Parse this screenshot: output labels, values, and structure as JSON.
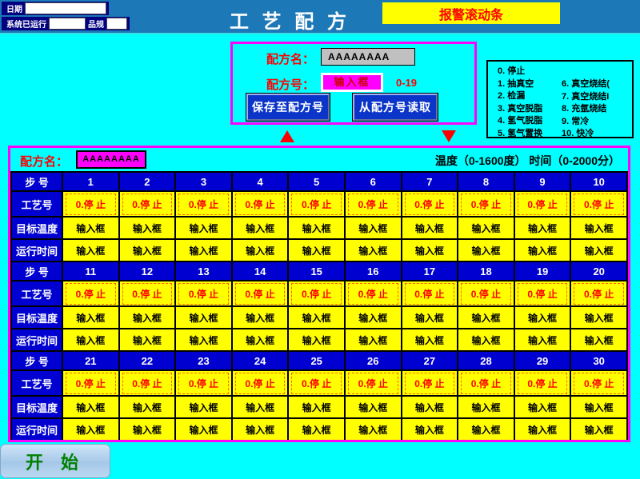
{
  "topbar": {
    "date_label": "日期",
    "runtime_label": "系统已运行",
    "spec_label": "品规",
    "title": "工 艺 配 方",
    "alarm_text": "报警滚动条"
  },
  "recipe_panel": {
    "name_label": "配方名：",
    "name_value": "AAAAAAAA",
    "number_label": "配方号：",
    "number_value": "输入框",
    "number_range": "0-19",
    "save_button": "保存至配方号",
    "load_button": "从配方号读取"
  },
  "legend": {
    "left_items": [
      "0. 停止",
      "1. 抽真空",
      "2. 检漏",
      "3. 真空脱脂",
      "4. 氢气脱脂",
      "5. 氢气置换"
    ],
    "right_items": [
      "6. 真空烧结(",
      "7. 真空烧结I",
      "8. 充氩烧结",
      "9. 常冷",
      "10. 快冷"
    ]
  },
  "table": {
    "name_label": "配方名：",
    "name_value": "AAAAAAAA",
    "range_note": "温度（0-1600度）  时间（0-2000分）",
    "row_labels": {
      "step": "步  号",
      "process": "工艺号",
      "temp": "目标温度",
      "time": "运行时间"
    },
    "process_value": "0.停 止",
    "input_value": "输入框",
    "blocks": [
      [
        1,
        2,
        3,
        4,
        5,
        6,
        7,
        8,
        9,
        10
      ],
      [
        11,
        12,
        13,
        14,
        15,
        16,
        17,
        18,
        19,
        20
      ],
      [
        21,
        22,
        23,
        24,
        25,
        26,
        27,
        28,
        29,
        30
      ]
    ]
  },
  "footer": {
    "start_label": "开 始"
  },
  "colors": {
    "background": "#00FFFF",
    "header_bar": "#1C78B6",
    "navy_box": "#000080",
    "panel_border": "#FF00FF",
    "cell_blue": "#0000D0",
    "cell_yellow": "#FFFF00",
    "alarm_bg": "#FFFF00",
    "alarm_text": "#FF0000",
    "button_blue": "#0B35C8",
    "start_text": "#008000"
  }
}
